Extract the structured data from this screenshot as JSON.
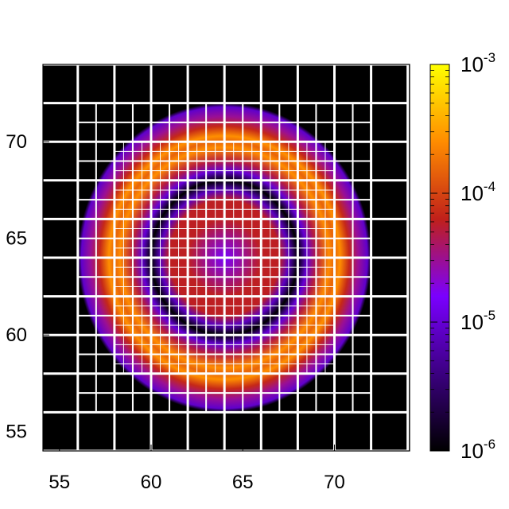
{
  "chart_data": {
    "type": "heatmap",
    "title": "",
    "xlabel": "",
    "ylabel": "",
    "xlim": [
      54.1,
      74.1
    ],
    "ylim": [
      54.0,
      74.0
    ],
    "x_ticks": [
      55,
      60,
      65,
      70
    ],
    "y_ticks": [
      55,
      60,
      65,
      70
    ],
    "x_tick_labels": [
      "55",
      "60",
      "65",
      "70"
    ],
    "y_tick_labels": [
      "55",
      "60",
      "65",
      "70"
    ],
    "colorbar": {
      "scale": "log",
      "range": [
        1e-06,
        0.001
      ],
      "ticks": [
        1e-06,
        1e-05,
        0.0001,
        0.001
      ],
      "tick_labels": [
        {
          "base": "10",
          "exp": "-6"
        },
        {
          "base": "10",
          "exp": "-5"
        },
        {
          "base": "10",
          "exp": "-4"
        },
        {
          "base": "10",
          "exp": "-3"
        }
      ],
      "palette": [
        "#000000",
        "#3b0080",
        "#7a00ff",
        "#c0201a",
        "#ff8c00",
        "#ffff00"
      ]
    },
    "field": {
      "center": [
        64.0,
        64.0
      ],
      "outer_radius": 8.0,
      "background_value": 1e-06,
      "radial_profile": [
        {
          "r": 0.0,
          "value": 1.5e-05
        },
        {
          "r": 1.0,
          "value": 3e-05
        },
        {
          "r": 2.0,
          "value": 6e-05
        },
        {
          "r": 3.0,
          "value": 6e-05
        },
        {
          "r": 3.5,
          "value": 8e-06
        },
        {
          "r": 4.0,
          "value": 1e-06
        },
        {
          "r": 4.5,
          "value": 1e-05
        },
        {
          "r": 5.0,
          "value": 5e-05
        },
        {
          "r": 5.7,
          "value": 0.00025
        },
        {
          "r": 6.0,
          "value": 0.00015
        },
        {
          "r": 6.3,
          "value": 0.00026
        },
        {
          "r": 6.8,
          "value": 7e-05
        },
        {
          "r": 7.3,
          "value": 3e-05
        },
        {
          "r": 7.8,
          "value": 9e-06
        },
        {
          "r": 8.0,
          "value": 1e-06
        }
      ]
    },
    "mesh": {
      "line_color": "#ffffff",
      "levels": [
        {
          "cell_size": 2.0,
          "extent": [
            54.0,
            74.0
          ]
        },
        {
          "cell_size": 1.0,
          "extent": [
            56.0,
            72.0
          ]
        },
        {
          "cell_size": 0.5,
          "extent": [
            58.0,
            70.0
          ]
        }
      ],
      "center_cross": [
        64.0,
        64.0
      ]
    }
  }
}
